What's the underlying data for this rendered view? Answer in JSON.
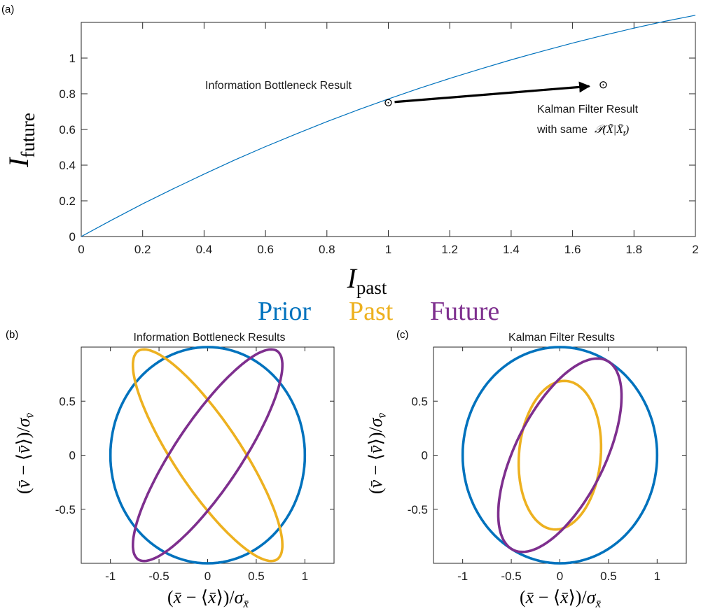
{
  "colors": {
    "prior": "#0072BD",
    "past": "#EDB120",
    "future": "#7E2F8E",
    "curve": "#0072BD",
    "marker": "#000000"
  },
  "legend": {
    "prior": "Prior",
    "past": "Past",
    "future": "Future"
  },
  "chart_data": [
    {
      "panel": "(a)",
      "type": "line",
      "title": "",
      "xlabel_main": "I",
      "xlabel_sub": "past",
      "ylabel_main": "I",
      "ylabel_sub": "future",
      "xlim": [
        0,
        2
      ],
      "ylim": [
        0,
        1.2
      ],
      "x_ticks": [
        "0",
        "0.2",
        "0.4",
        "0.6",
        "0.8",
        "1",
        "1.2",
        "1.4",
        "1.6",
        "1.8",
        "2"
      ],
      "y_ticks": [
        "0",
        "0.2",
        "0.4",
        "0.6",
        "0.8",
        "1"
      ],
      "x_tick_values": [
        0,
        0.2,
        0.4,
        0.6,
        0.8,
        1,
        1.2,
        1.4,
        1.6,
        1.8,
        2
      ],
      "y_tick_values": [
        0,
        0.2,
        0.4,
        0.6,
        0.8,
        1
      ],
      "series": [
        {
          "x": [
            0,
            0.1,
            0.2,
            0.3,
            0.4,
            0.5,
            0.6,
            0.7,
            0.8,
            0.9,
            1.0,
            1.1,
            1.2,
            1.3,
            1.4,
            1.5,
            1.6,
            1.7,
            1.8,
            1.9,
            2.0
          ],
          "values": [
            0,
            0.093,
            0.183,
            0.268,
            0.35,
            0.429,
            0.504,
            0.575,
            0.644,
            0.709,
            0.771,
            0.83,
            0.886,
            0.939,
            0.99,
            1.038,
            1.084,
            1.127,
            1.168,
            1.206,
            1.24
          ]
        }
      ],
      "points": [
        {
          "label": "Information Bottleneck Result",
          "x": 1.0,
          "y": 0.75
        },
        {
          "label_line1": "Kalman Filter Result",
          "label_line2": "with same",
          "x": 1.7,
          "y": 0.85
        }
      ]
    },
    {
      "panel": "(b)",
      "type": "line",
      "title": "Information Bottleneck Results",
      "xlim": [
        -1.3,
        1.3
      ],
      "ylim": [
        -1,
        1
      ],
      "x_ticks": [
        "-1",
        "-0.5",
        "0",
        "0.5",
        "1"
      ],
      "y_ticks": [
        "-0.5",
        "0",
        "0.5"
      ],
      "x_tick_values": [
        -1,
        -0.5,
        0,
        0.5,
        1
      ],
      "y_tick_values": [
        -0.5,
        0,
        0.5
      ],
      "ellipses": [
        {
          "series": "prior",
          "cx": 0,
          "cy": 0,
          "a": 1.0,
          "b": 1.0,
          "angle_deg": 0
        },
        {
          "series": "past",
          "cx": 0,
          "cy": 0,
          "a": 1.2,
          "b": 0.33,
          "angle_deg": -53
        },
        {
          "series": "future",
          "cx": 0,
          "cy": 0,
          "a": 1.2,
          "b": 0.33,
          "angle_deg": 53
        }
      ]
    },
    {
      "panel": "(c)",
      "type": "line",
      "title": "Kalman Filter Results",
      "xlim": [
        -1.3,
        1.3
      ],
      "ylim": [
        -1,
        1
      ],
      "x_ticks": [
        "-1",
        "-0.5",
        "0",
        "0.5",
        "1"
      ],
      "y_ticks": [
        "-0.5",
        "0",
        "0.5"
      ],
      "x_tick_values": [
        -1,
        -0.5,
        0,
        0.5,
        1
      ],
      "y_tick_values": [
        -0.5,
        0,
        0.5
      ],
      "ellipses": [
        {
          "series": "prior",
          "cx": 0,
          "cy": 0,
          "a": 1.0,
          "b": 1.0,
          "angle_deg": 0
        },
        {
          "series": "past",
          "cx": 0,
          "cy": 0,
          "a": 0.69,
          "b": 0.42,
          "angle_deg": 84
        },
        {
          "series": "future",
          "cx": 0,
          "cy": 0,
          "a": 1.0,
          "b": 0.45,
          "angle_deg": 60
        }
      ]
    }
  ]
}
